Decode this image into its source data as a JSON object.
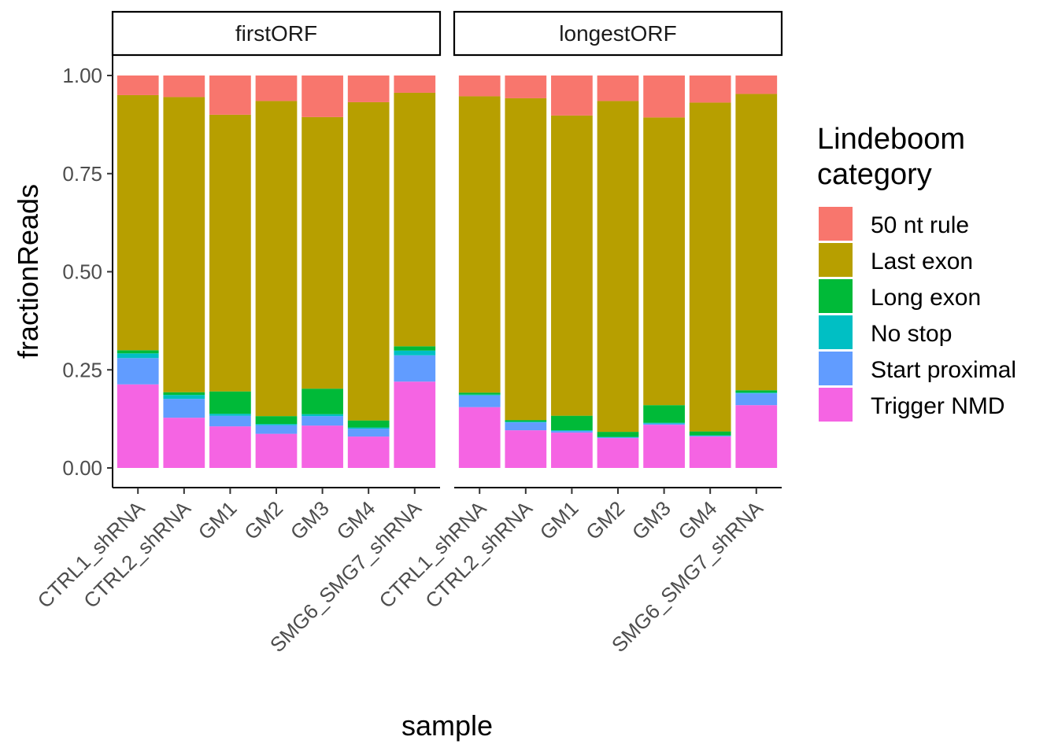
{
  "chart_data": {
    "type": "bar",
    "stacked": true,
    "faceted": true,
    "categories": [
      "CTRL1_shRNA",
      "CTRL2_shRNA",
      "GM1",
      "GM2",
      "GM3",
      "GM4",
      "SMG6_SMG7_shRNA"
    ],
    "xlabel": "sample",
    "ylabel": "fractionReads",
    "ylim": [
      0,
      1
    ],
    "yticks": [
      "0.00",
      "0.25",
      "0.50",
      "0.75",
      "1.00"
    ],
    "ytick_values": [
      0,
      0.25,
      0.5,
      0.75,
      1.0
    ],
    "grid": false,
    "legend": {
      "title_lines": [
        "Lindeboom",
        "category"
      ],
      "position": "right"
    },
    "series_meta": [
      {
        "name": "50 nt rule",
        "color": "#F8766D"
      },
      {
        "name": "Last exon",
        "color": "#B79F00"
      },
      {
        "name": "Long exon",
        "color": "#00BA38"
      },
      {
        "name": "No stop",
        "color": "#00BFC4"
      },
      {
        "name": "Start proximal",
        "color": "#619CFF"
      },
      {
        "name": "Trigger NMD",
        "color": "#F564E3"
      }
    ],
    "stack_order_bottom_to_top": [
      "Trigger NMD",
      "Start proximal",
      "No stop",
      "Long exon",
      "Last exon",
      "50 nt rule"
    ],
    "panels": [
      {
        "strip": "firstORF",
        "series": [
          {
            "name": "Trigger NMD",
            "values": [
              0.213,
              0.128,
              0.106,
              0.087,
              0.108,
              0.08,
              0.22
            ]
          },
          {
            "name": "Start proximal",
            "values": [
              0.067,
              0.048,
              0.027,
              0.022,
              0.024,
              0.02,
              0.067
            ]
          },
          {
            "name": "No stop",
            "values": [
              0.012,
              0.01,
              0.005,
              0.003,
              0.005,
              0.003,
              0.012
            ]
          },
          {
            "name": "Long exon",
            "values": [
              0.008,
              0.007,
              0.057,
              0.02,
              0.065,
              0.018,
              0.011
            ]
          },
          {
            "name": "Last exon",
            "values": [
              0.65,
              0.752,
              0.705,
              0.803,
              0.692,
              0.811,
              0.646
            ]
          },
          {
            "name": "50 nt rule",
            "values": [
              0.05,
              0.055,
              0.1,
              0.065,
              0.106,
              0.068,
              0.044
            ]
          }
        ]
      },
      {
        "strip": "longestORF",
        "series": [
          {
            "name": "Trigger NMD",
            "values": [
              0.155,
              0.096,
              0.09,
              0.076,
              0.11,
              0.08,
              0.16
            ]
          },
          {
            "name": "Start proximal",
            "values": [
              0.03,
              0.02,
              0.004,
              0.002,
              0.003,
              0.002,
              0.03
            ]
          },
          {
            "name": "No stop",
            "values": [
              0.002,
              0.002,
              0.002,
              0.001,
              0.002,
              0.001,
              0.002
            ]
          },
          {
            "name": "Long exon",
            "values": [
              0.005,
              0.004,
              0.037,
              0.013,
              0.045,
              0.01,
              0.006
            ]
          },
          {
            "name": "Last exon",
            "values": [
              0.755,
              0.82,
              0.765,
              0.843,
              0.733,
              0.838,
              0.755
            ]
          },
          {
            "name": "50 nt rule",
            "values": [
              0.053,
              0.058,
              0.102,
              0.065,
              0.107,
              0.069,
              0.047
            ]
          }
        ]
      }
    ]
  }
}
